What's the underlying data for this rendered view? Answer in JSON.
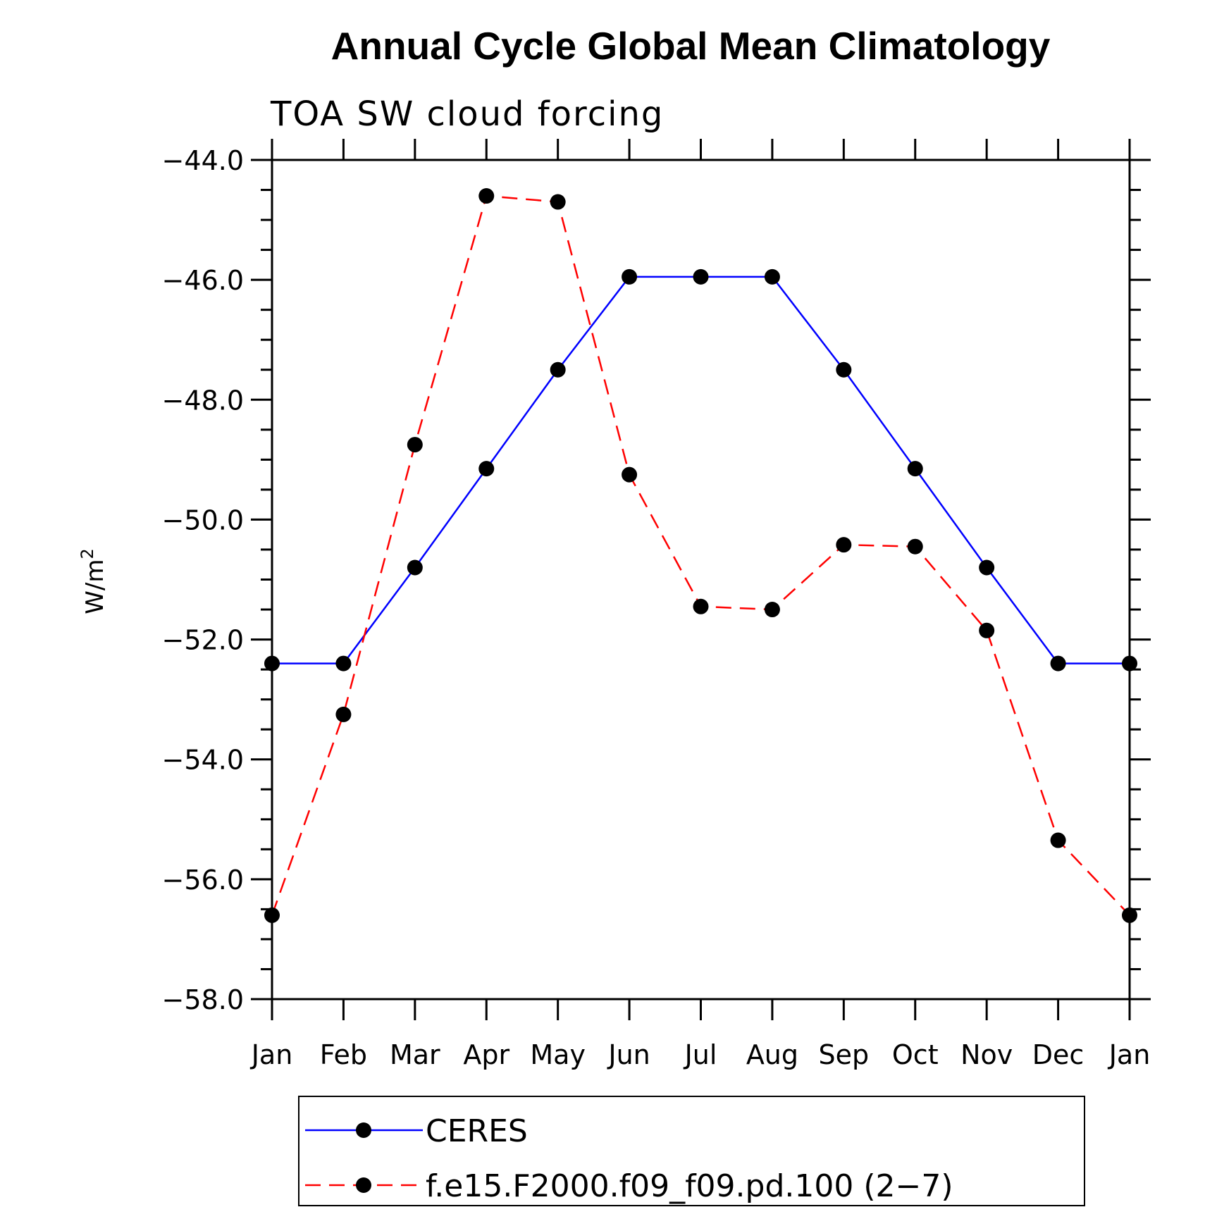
{
  "chart_data": {
    "type": "line",
    "title": "Annual Cycle Global Mean Climatology",
    "subtitle": "TOA SW cloud forcing",
    "ylabel": "W/m",
    "ylabel_superscript": "2",
    "xlabel": "",
    "categories": [
      "Jan",
      "Feb",
      "Mar",
      "Apr",
      "May",
      "Jun",
      "Jul",
      "Aug",
      "Sep",
      "Oct",
      "Nov",
      "Dec",
      "Jan"
    ],
    "ylim": [
      -58.0,
      -44.0
    ],
    "yticks": [
      -44.0,
      -46.0,
      -48.0,
      -50.0,
      -52.0,
      -54.0,
      -56.0,
      -58.0
    ],
    "ytick_labels": [
      "−44.0",
      "−46.0",
      "−48.0",
      "−50.0",
      "−52.0",
      "−54.0",
      "−56.0",
      "−58.0"
    ],
    "series": [
      {
        "name": "CERES",
        "color": "#0000ff",
        "dashed": false,
        "values": [
          -52.4,
          -52.4,
          -50.8,
          -49.15,
          -47.5,
          -45.95,
          -45.95,
          -45.95,
          -47.5,
          -49.15,
          -50.8,
          -52.4,
          -52.4
        ]
      },
      {
        "name": "f.e15.F2000.f09_f09.pd.100 (2−7)",
        "color": "#ff0000",
        "dashed": true,
        "values": [
          -56.6,
          -53.25,
          -48.75,
          -44.6,
          -44.7,
          -49.25,
          -51.45,
          -51.5,
          -50.42,
          -50.45,
          -51.85,
          -55.35,
          -56.6
        ]
      }
    ],
    "marker_color": "#000000",
    "legend_position": "bottom"
  }
}
